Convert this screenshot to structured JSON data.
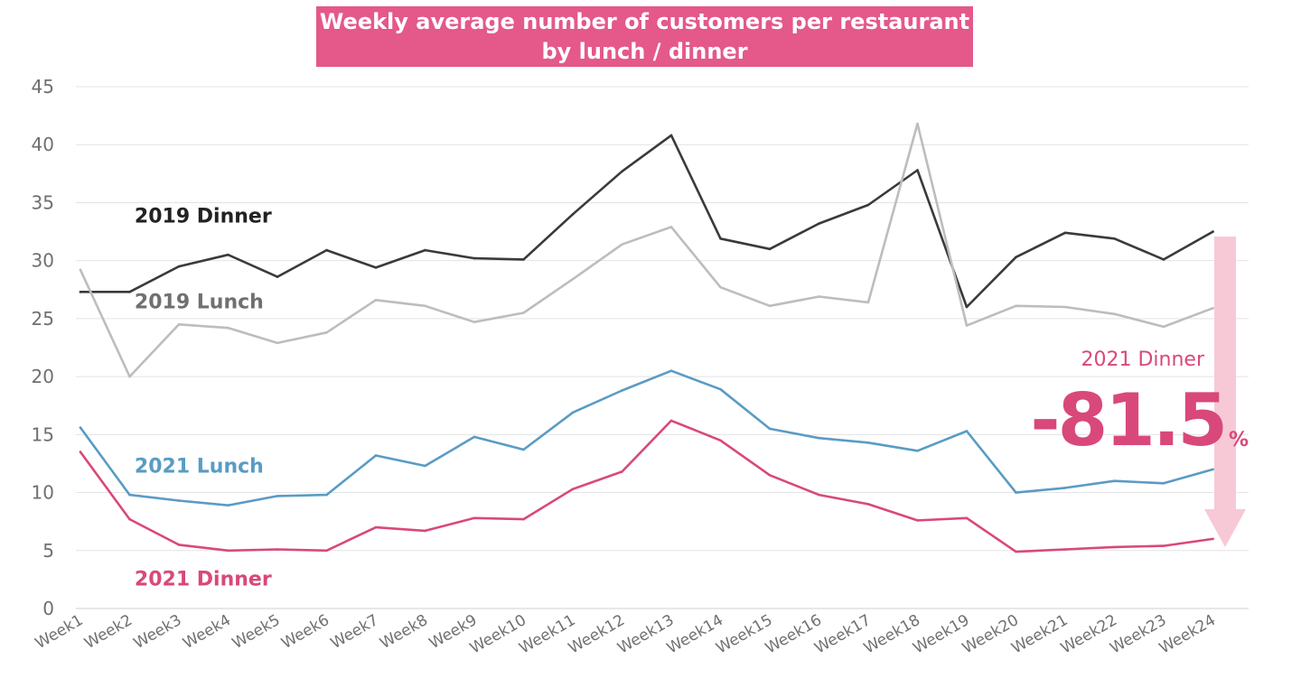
{
  "chart_data": {
    "type": "line",
    "title": "Weekly average number of customers per restaurant",
    "subtitle": "by lunch / dinner",
    "xlabel": "",
    "ylabel": "",
    "ylim": [
      0,
      45
    ],
    "yticks": [
      0,
      5,
      10,
      15,
      20,
      25,
      30,
      35,
      40,
      45
    ],
    "grid": true,
    "categories": [
      "Week1",
      "Week2",
      "Week3",
      "Week4",
      "Week5",
      "Week6",
      "Week7",
      "Week8",
      "Week9",
      "Week10",
      "Week11",
      "Week12",
      "Week13",
      "Week14",
      "Week15",
      "Week16",
      "Week17",
      "Week18",
      "Week19",
      "Week20",
      "Week21",
      "Week22",
      "Week23",
      "Week24"
    ],
    "series": [
      {
        "name": "2019 Dinner",
        "color": "#3a3a3a",
        "values": [
          27.3,
          27.3,
          29.5,
          30.5,
          28.6,
          30.9,
          29.4,
          30.9,
          30.2,
          30.1,
          34.0,
          37.7,
          40.8,
          31.9,
          31.0,
          33.2,
          34.8,
          37.8,
          26.0,
          30.3,
          32.4,
          31.9,
          30.1,
          32.5
        ]
      },
      {
        "name": "2019 Lunch",
        "color": "#bdbdbd",
        "values": [
          29.2,
          20.0,
          24.5,
          24.2,
          22.9,
          23.8,
          26.6,
          26.1,
          24.7,
          25.5,
          28.4,
          31.4,
          32.9,
          27.7,
          26.1,
          26.9,
          26.4,
          41.8,
          24.4,
          26.1,
          26.0,
          25.4,
          24.3,
          25.9
        ]
      },
      {
        "name": "2021 Lunch",
        "color": "#5a9bc4",
        "values": [
          15.6,
          9.8,
          9.3,
          8.9,
          9.7,
          9.8,
          13.2,
          12.3,
          14.8,
          13.7,
          16.9,
          18.8,
          20.5,
          18.9,
          15.5,
          14.7,
          14.3,
          13.6,
          15.3,
          10.0,
          10.4,
          11.0,
          10.8,
          12.0
        ]
      },
      {
        "name": "2021 Dinner",
        "color": "#d9487a",
        "values": [
          13.5,
          7.7,
          5.5,
          5.0,
          5.1,
          5.0,
          7.0,
          6.7,
          7.8,
          7.7,
          10.3,
          11.8,
          16.2,
          14.5,
          11.5,
          9.8,
          9.0,
          7.6,
          7.8,
          4.9,
          5.1,
          5.3,
          5.4,
          6.0
        ]
      }
    ],
    "series_labels": [
      {
        "text": "2019 Dinner",
        "color": "#222222",
        "x_week": 3.2,
        "y": 33.3
      },
      {
        "text": "2019 Lunch",
        "color": "#707070",
        "x_week": 3.2,
        "y": 25.9
      },
      {
        "text": "2021 Lunch",
        "color": "#5a9bc4",
        "x_week": 3.2,
        "y": 11.7
      },
      {
        "text": "2021 Dinner",
        "color": "#d9487a",
        "x_week": 3.2,
        "y": 2.0
      }
    ],
    "annotation": {
      "label": "2021 Dinner",
      "value": "-81.5",
      "unit": "%",
      "color": "#d9487a",
      "arrow_color": "#f7c9d6"
    }
  }
}
